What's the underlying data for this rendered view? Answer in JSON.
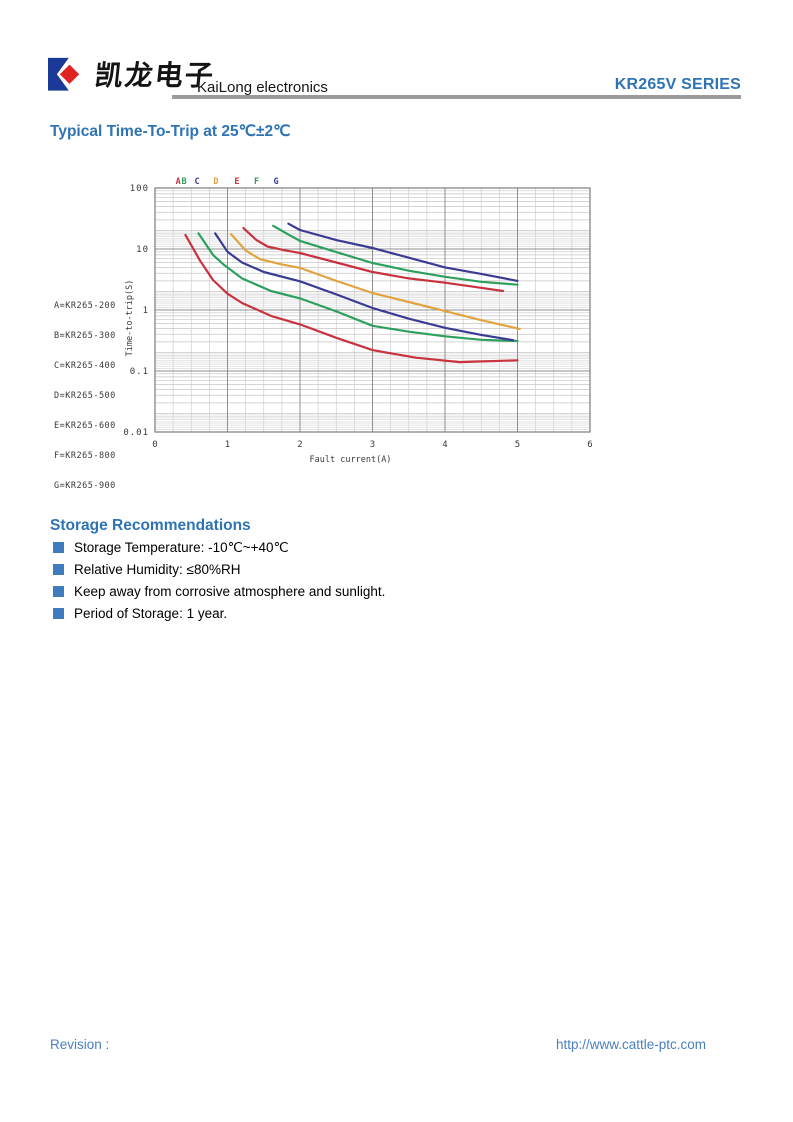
{
  "header": {
    "logo": {
      "chinese": "凯龙电子",
      "latin": "KaiLong electronics"
    },
    "series": "KR265V SERIES"
  },
  "section": {
    "title": "Typical Time-To-Trip at 25℃±2℃"
  },
  "chart_data": {
    "type": "line",
    "title": "Typical Time-To-Trip at 25℃±2℃",
    "xlabel": "Fault current(A)",
    "ylabel": "Time-to-trip(S)",
    "x_axis": {
      "min": 0,
      "max": 6,
      "ticks": [
        0,
        1,
        2,
        3,
        4,
        5,
        6
      ],
      "minor_step": 0.25
    },
    "y_axis": {
      "scale": "log",
      "min": 0.01,
      "max": 100,
      "tick_values": [
        100,
        10,
        1,
        0.1,
        0.01
      ],
      "tick_labels": [
        "100",
        "10",
        "1",
        "0.1",
        "0.01"
      ]
    },
    "grid": "on",
    "legend_position": "left",
    "legend_lines": [
      "A=KR265-200",
      "B=KR265-300",
      "C=KR265-400",
      "D=KR265-500",
      "E=KR265-600",
      "F=KR265-800",
      "G=KR265-900"
    ],
    "curve_labels": [
      {
        "text": "A",
        "x": 0.32
      },
      {
        "text": "B",
        "x": 0.4
      },
      {
        "text": "C",
        "x": 0.58
      },
      {
        "text": "D",
        "x": 0.84
      },
      {
        "text": "E",
        "x": 1.13
      },
      {
        "text": "F",
        "x": 1.4
      },
      {
        "text": "G",
        "x": 1.67
      }
    ],
    "series": [
      {
        "name": "A",
        "model": "KR265-200",
        "color": "#c9323f",
        "points": [
          [
            0.42,
            17
          ],
          [
            0.62,
            6.5
          ],
          [
            0.8,
            3.1
          ],
          [
            1.0,
            1.85
          ],
          [
            1.2,
            1.3
          ],
          [
            1.6,
            0.8
          ],
          [
            2.0,
            0.58
          ],
          [
            2.5,
            0.35
          ],
          [
            3.0,
            0.22
          ],
          [
            3.6,
            0.165
          ],
          [
            4.2,
            0.14
          ],
          [
            5.0,
            0.15
          ]
        ]
      },
      {
        "name": "B",
        "model": "KR265-300",
        "color": "#2ea05e",
        "points": [
          [
            0.6,
            18
          ],
          [
            0.8,
            8.0
          ],
          [
            0.95,
            5.5
          ],
          [
            1.2,
            3.3
          ],
          [
            1.6,
            2.05
          ],
          [
            2.0,
            1.55
          ],
          [
            2.5,
            0.95
          ],
          [
            3.0,
            0.55
          ],
          [
            3.5,
            0.44
          ],
          [
            4.0,
            0.37
          ],
          [
            4.5,
            0.325
          ],
          [
            5.0,
            0.31
          ]
        ]
      },
      {
        "name": "C",
        "model": "KR265-400",
        "color": "#3b3b94",
        "points": [
          [
            0.83,
            18
          ],
          [
            1.0,
            9.0
          ],
          [
            1.2,
            6.0
          ],
          [
            1.5,
            4.2
          ],
          [
            2.0,
            2.95
          ],
          [
            2.5,
            1.8
          ],
          [
            3.0,
            1.08
          ],
          [
            3.5,
            0.72
          ],
          [
            4.0,
            0.51
          ],
          [
            4.5,
            0.39
          ],
          [
            4.94,
            0.32
          ]
        ]
      },
      {
        "name": "D",
        "model": "KR265-500",
        "color": "#e2a23f",
        "points": [
          [
            1.05,
            17.5
          ],
          [
            1.25,
            9.5
          ],
          [
            1.45,
            6.8
          ],
          [
            1.75,
            5.6
          ],
          [
            2.0,
            4.9
          ],
          [
            2.5,
            3.0
          ],
          [
            3.0,
            1.9
          ],
          [
            3.5,
            1.35
          ],
          [
            4.0,
            0.96
          ],
          [
            4.5,
            0.68
          ],
          [
            5.03,
            0.49
          ]
        ]
      },
      {
        "name": "E",
        "model": "KR265-600",
        "color": "#c9323f",
        "points": [
          [
            1.22,
            22
          ],
          [
            1.4,
            14
          ],
          [
            1.55,
            11
          ],
          [
            1.8,
            9.5
          ],
          [
            2.0,
            8.6
          ],
          [
            2.5,
            6.0
          ],
          [
            3.0,
            4.2
          ],
          [
            3.5,
            3.3
          ],
          [
            4.0,
            2.8
          ],
          [
            4.4,
            2.4
          ],
          [
            4.8,
            2.05
          ]
        ]
      },
      {
        "name": "F",
        "model": "KR265-800",
        "color": "#2ea05e",
        "points": [
          [
            1.63,
            24
          ],
          [
            1.85,
            17
          ],
          [
            2.0,
            13.6
          ],
          [
            2.5,
            8.9
          ],
          [
            3.0,
            5.9
          ],
          [
            3.5,
            4.4
          ],
          [
            4.0,
            3.5
          ],
          [
            4.5,
            2.9
          ],
          [
            5.0,
            2.6
          ]
        ]
      },
      {
        "name": "G",
        "model": "KR265-900",
        "color": "#3b3b94",
        "points": [
          [
            1.84,
            26
          ],
          [
            2.0,
            20.5
          ],
          [
            2.5,
            14
          ],
          [
            3.0,
            10.4
          ],
          [
            3.5,
            7.2
          ],
          [
            4.0,
            5.0
          ],
          [
            4.5,
            3.9
          ],
          [
            5.0,
            3.0
          ]
        ]
      }
    ]
  },
  "storage": {
    "title": "Storage Recommendations",
    "items": [
      "Storage Temperature: -10℃~+40℃",
      "Relative Humidity: ≤80%RH",
      "Keep away from corrosive atmosphere and sunlight.",
      "Period of Storage: 1 year."
    ]
  },
  "footer": {
    "revision_label": "Revision :",
    "url": "http://www.cattle-ptc.com"
  },
  "colors": {
    "heading_blue": "#2e74b5",
    "footer_blue": "#4a7ebf",
    "bullet_blue": "#3f7cbf",
    "rule_gray": "#9b9b9b",
    "logo_blue": "#1b3a97",
    "logo_red": "#e02222",
    "grid_minor": "#cfcfcf",
    "grid_major": "#8f8f8f"
  }
}
